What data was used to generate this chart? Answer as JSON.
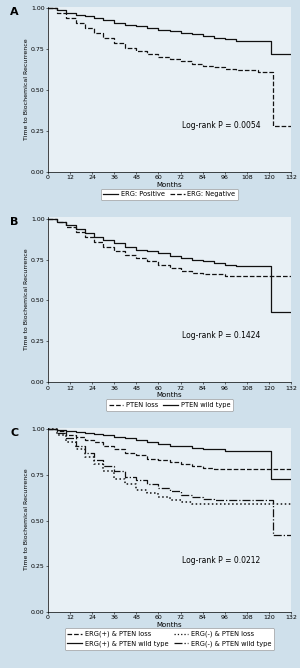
{
  "panel_A": {
    "label": "A",
    "pvalue": "Log-rank P = 0.0054",
    "series": [
      {
        "name": "ERG: Positive",
        "linestyle": "solid",
        "color": "#111111",
        "lw": 0.9,
        "times": [
          0,
          5,
          10,
          15,
          20,
          25,
          30,
          36,
          42,
          48,
          54,
          60,
          66,
          72,
          78,
          84,
          90,
          96,
          102,
          108,
          114,
          120,
          121,
          132
        ],
        "surv": [
          1.0,
          0.99,
          0.97,
          0.96,
          0.95,
          0.94,
          0.93,
          0.91,
          0.9,
          0.89,
          0.88,
          0.87,
          0.86,
          0.85,
          0.84,
          0.83,
          0.82,
          0.81,
          0.8,
          0.8,
          0.8,
          0.8,
          0.72,
          0.72
        ]
      },
      {
        "name": "ERG: Negative",
        "linestyle": "dashed",
        "color": "#111111",
        "lw": 0.9,
        "times": [
          0,
          5,
          10,
          15,
          20,
          25,
          30,
          36,
          42,
          48,
          54,
          60,
          66,
          72,
          78,
          84,
          90,
          96,
          102,
          108,
          114,
          120,
          121,
          122,
          132
        ],
        "surv": [
          1.0,
          0.97,
          0.94,
          0.91,
          0.88,
          0.85,
          0.82,
          0.79,
          0.76,
          0.74,
          0.72,
          0.7,
          0.69,
          0.68,
          0.66,
          0.65,
          0.64,
          0.63,
          0.62,
          0.62,
          0.61,
          0.61,
          0.61,
          0.28,
          0.28
        ]
      }
    ],
    "legend_entries": [
      "ERG: Positive",
      "ERG: Negative"
    ],
    "legend_styles": [
      "solid",
      "dashed"
    ]
  },
  "panel_B": {
    "label": "B",
    "pvalue": "Log-rank P = 0.1424",
    "series": [
      {
        "name": "PTEN loss",
        "linestyle": "dashed",
        "color": "#111111",
        "lw": 0.9,
        "times": [
          0,
          5,
          10,
          15,
          20,
          25,
          30,
          36,
          42,
          48,
          54,
          60,
          66,
          72,
          78,
          84,
          90,
          96,
          102,
          108,
          114,
          120,
          132
        ],
        "surv": [
          1.0,
          0.98,
          0.95,
          0.92,
          0.89,
          0.86,
          0.83,
          0.8,
          0.78,
          0.76,
          0.74,
          0.72,
          0.7,
          0.68,
          0.67,
          0.66,
          0.66,
          0.65,
          0.65,
          0.65,
          0.65,
          0.65,
          0.65
        ]
      },
      {
        "name": "PTEN wild type",
        "linestyle": "solid",
        "color": "#111111",
        "lw": 0.9,
        "times": [
          0,
          5,
          10,
          15,
          20,
          25,
          30,
          36,
          42,
          48,
          54,
          60,
          66,
          72,
          78,
          84,
          90,
          96,
          102,
          108,
          114,
          120,
          121,
          132
        ],
        "surv": [
          1.0,
          0.98,
          0.96,
          0.94,
          0.91,
          0.89,
          0.87,
          0.85,
          0.83,
          0.81,
          0.8,
          0.79,
          0.77,
          0.76,
          0.75,
          0.74,
          0.73,
          0.72,
          0.71,
          0.71,
          0.71,
          0.71,
          0.43,
          0.43
        ]
      }
    ],
    "legend_entries": [
      "PTEN loss",
      "PTEN wild type"
    ],
    "legend_styles": [
      "dashed",
      "solid"
    ]
  },
  "panel_C": {
    "label": "C",
    "pvalue": "Log-rank P = 0.0212",
    "series": [
      {
        "name": "ERG(+) & PTEN loss",
        "linestyle": "dashed",
        "color": "#111111",
        "lw": 0.9,
        "times": [
          0,
          5,
          10,
          15,
          20,
          25,
          30,
          36,
          42,
          48,
          54,
          60,
          66,
          72,
          78,
          84,
          90,
          96,
          102,
          108,
          114,
          120,
          132
        ],
        "surv": [
          1.0,
          0.99,
          0.97,
          0.96,
          0.94,
          0.93,
          0.91,
          0.89,
          0.87,
          0.86,
          0.84,
          0.83,
          0.82,
          0.81,
          0.8,
          0.79,
          0.78,
          0.78,
          0.78,
          0.78,
          0.78,
          0.78,
          0.78
        ]
      },
      {
        "name": "ERG(+) & PTEN wild type",
        "linestyle": "solid",
        "color": "#111111",
        "lw": 0.9,
        "times": [
          0,
          5,
          10,
          15,
          20,
          25,
          30,
          36,
          42,
          48,
          54,
          60,
          66,
          72,
          78,
          84,
          90,
          96,
          102,
          108,
          114,
          120,
          121,
          132
        ],
        "surv": [
          1.0,
          0.995,
          0.99,
          0.985,
          0.98,
          0.975,
          0.97,
          0.96,
          0.95,
          0.94,
          0.93,
          0.92,
          0.91,
          0.91,
          0.9,
          0.89,
          0.89,
          0.88,
          0.88,
          0.88,
          0.88,
          0.88,
          0.73,
          0.73
        ]
      },
      {
        "name": "ERG(-) & PTEN loss",
        "linestyle": "dotted",
        "color": "#111111",
        "lw": 1.1,
        "times": [
          0,
          5,
          10,
          15,
          20,
          25,
          30,
          36,
          42,
          48,
          54,
          60,
          66,
          72,
          78,
          84,
          90,
          96,
          102,
          108,
          114,
          120,
          132
        ],
        "surv": [
          1.0,
          0.97,
          0.93,
          0.89,
          0.85,
          0.81,
          0.77,
          0.73,
          0.7,
          0.67,
          0.65,
          0.63,
          0.61,
          0.6,
          0.59,
          0.59,
          0.59,
          0.59,
          0.59,
          0.59,
          0.59,
          0.59,
          0.59
        ]
      },
      {
        "name": "ERG(-) & PTEN wild type",
        "linestyle": "dashdot",
        "color": "#111111",
        "lw": 0.9,
        "times": [
          0,
          5,
          10,
          15,
          20,
          25,
          30,
          36,
          42,
          48,
          54,
          60,
          66,
          72,
          78,
          84,
          90,
          96,
          102,
          108,
          114,
          120,
          121,
          122,
          132
        ],
        "surv": [
          1.0,
          0.98,
          0.95,
          0.91,
          0.87,
          0.83,
          0.8,
          0.77,
          0.74,
          0.72,
          0.7,
          0.68,
          0.66,
          0.64,
          0.63,
          0.62,
          0.61,
          0.61,
          0.61,
          0.61,
          0.61,
          0.61,
          0.61,
          0.42,
          0.42
        ]
      }
    ],
    "legend_entries": [
      "ERG(+) & PTEN loss",
      "ERG(+) & PTEN wild type",
      "ERG(-) & PTEN loss",
      "ERG(-) & PTEN wild type"
    ],
    "legend_styles": [
      "dashed",
      "solid",
      "dotted",
      "dashdot"
    ]
  },
  "xlabel": "Months",
  "ylabel": "Time to Biochemical Recurrence",
  "xlim": [
    0,
    132
  ],
  "xticks": [
    0,
    12,
    24,
    36,
    48,
    60,
    72,
    84,
    96,
    108,
    120,
    132
  ],
  "xtick_labels": [
    "0",
    "12",
    "24",
    "36",
    "48",
    "60",
    "72",
    "84",
    "96",
    "108",
    "120",
    "132"
  ],
  "ylim": [
    0.0,
    1.01
  ],
  "yticks": [
    0.0,
    0.25,
    0.5,
    0.75,
    1.0
  ],
  "ytick_labels": [
    "0.00",
    "0.25",
    "0.50",
    "0.75",
    "1.00"
  ],
  "background_color": "#cfe0eb",
  "plot_background": "#e8f0f5",
  "pvalue_fontsize": 5.5,
  "axis_label_fontsize": 5,
  "tick_fontsize": 4.5,
  "legend_fontsize": 4.8,
  "panel_label_fontsize": 8
}
